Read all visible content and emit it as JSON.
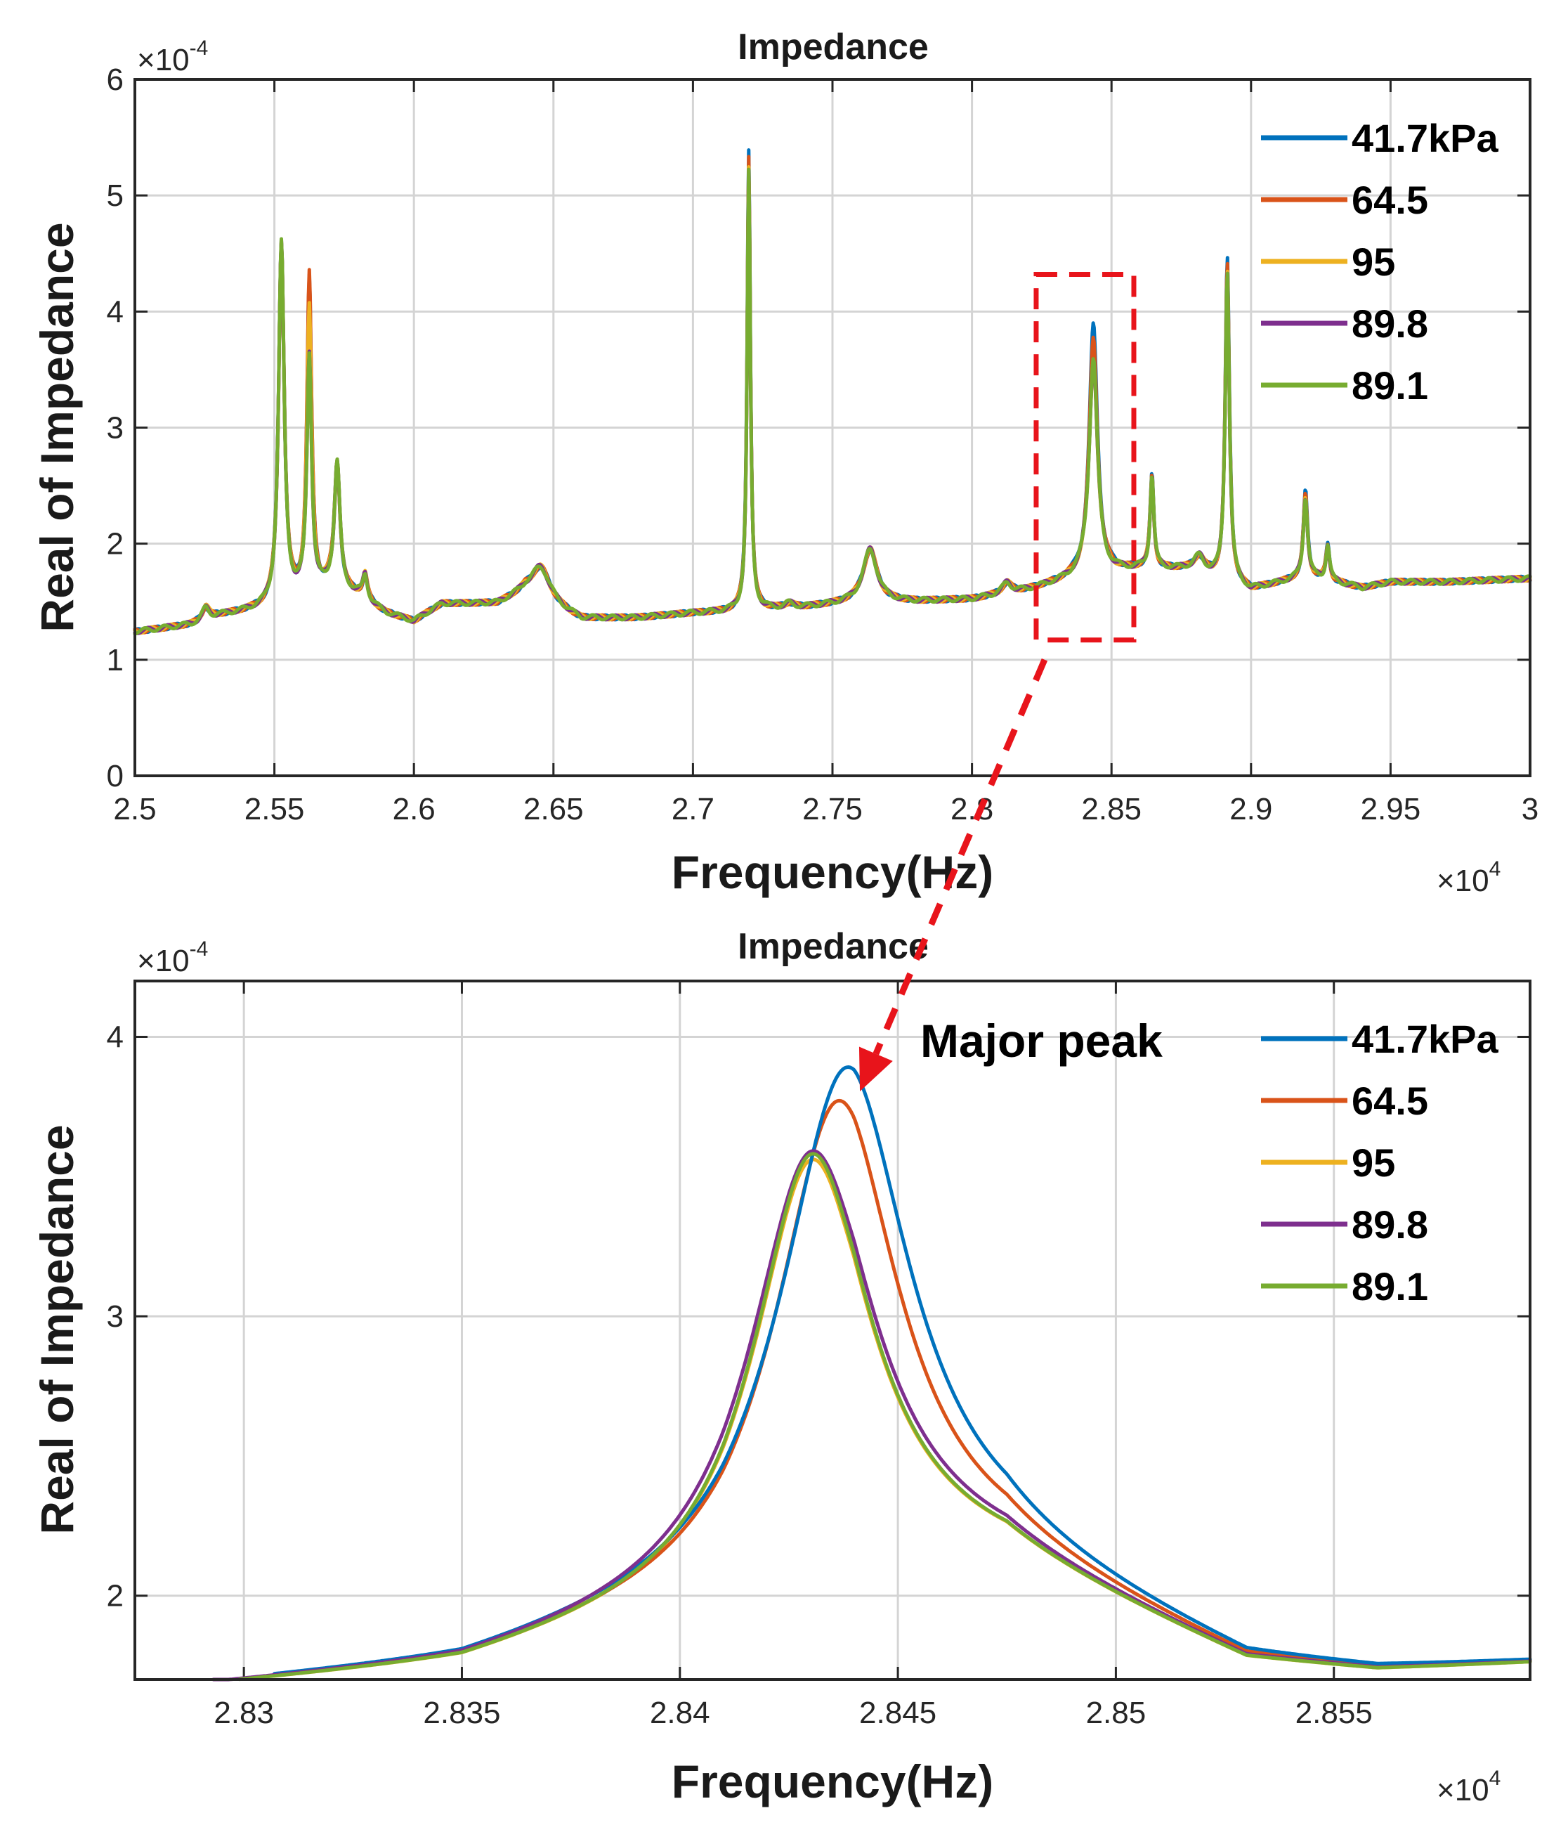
{
  "chart_data": [
    {
      "type": "line",
      "title": "Impedance",
      "xlabel": "Frequency(Hz)",
      "ylabel": "Real of Impedance",
      "x_multiplier": "×10",
      "x_exponent": "4",
      "y_multiplier": "×10",
      "y_exponent": "-4",
      "xlim": [
        2.5,
        3.0
      ],
      "ylim": [
        0,
        6
      ],
      "xticks": [
        2.5,
        2.55,
        2.6,
        2.65,
        2.7,
        2.75,
        2.8,
        2.85,
        2.9,
        2.95,
        3.0
      ],
      "xtick_labels": [
        "2.5",
        "2.55",
        "2.6",
        "2.65",
        "2.7",
        "2.75",
        "2.8",
        "2.85",
        "2.9",
        "2.95",
        "3"
      ],
      "yticks": [
        0,
        1,
        2,
        3,
        4,
        5,
        6
      ],
      "ytick_labels": [
        "0",
        "1",
        "2",
        "3",
        "4",
        "5",
        "6"
      ],
      "grid": true,
      "legend_position": "top-right",
      "highlight_box": {
        "x_range": [
          2.823,
          2.858
        ],
        "y_range": [
          1.17,
          4.32
        ],
        "color": "#e8141b",
        "style": "dashed"
      },
      "baseline": {
        "x": [
          2.5,
          2.52,
          2.53,
          2.55,
          2.57,
          2.58,
          2.59,
          2.6,
          2.61,
          2.63,
          2.64,
          2.66,
          2.68,
          2.7,
          2.72,
          2.74,
          2.76,
          2.78,
          2.8,
          2.82,
          2.84,
          2.86,
          2.88,
          2.9,
          2.92,
          2.94,
          2.95,
          2.97,
          3.0
        ],
        "y": [
          1.24,
          1.3,
          1.38,
          1.45,
          1.62,
          1.55,
          1.4,
          1.33,
          1.48,
          1.48,
          1.58,
          1.35,
          1.36,
          1.4,
          1.42,
          1.45,
          1.5,
          1.5,
          1.52,
          1.6,
          1.72,
          1.78,
          1.78,
          1.6,
          1.72,
          1.62,
          1.67,
          1.67,
          1.7
        ]
      },
      "peaks": [
        {
          "x": 2.5253,
          "height": 0.08,
          "width": 0.0015
        },
        {
          "x": 2.5525,
          "height": 3.0,
          "width": 0.0012
        },
        {
          "x": 2.5625,
          "height": 2.6,
          "width": 0.001
        },
        {
          "x": 2.5725,
          "height": 1.05,
          "width": 0.0012
        },
        {
          "x": 2.5825,
          "height": 0.12,
          "width": 0.001
        },
        {
          "x": 2.6455,
          "height": 0.25,
          "width": 0.004
        },
        {
          "x": 2.72,
          "height": 3.95,
          "width": 0.0007
        },
        {
          "x": 2.7345,
          "height": 0.05,
          "width": 0.002
        },
        {
          "x": 2.7635,
          "height": 0.45,
          "width": 0.003
        },
        {
          "x": 2.8125,
          "height": 0.07,
          "width": 0.002
        },
        {
          "x": 2.8435,
          "height": 2.05,
          "width": 0.0018
        },
        {
          "x": 2.8645,
          "height": 0.8,
          "width": 0.0008
        },
        {
          "x": 2.8815,
          "height": 0.1,
          "width": 0.002
        },
        {
          "x": 2.8915,
          "height": 2.75,
          "width": 0.0009
        },
        {
          "x": 2.9195,
          "height": 0.6,
          "width": 0.0009
        },
        {
          "x": 2.9275,
          "height": 0.28,
          "width": 0.0008
        }
      ],
      "series": [
        {
          "name": "41.7kPa",
          "color": "#0072bd",
          "peak_values": [
            1.45,
            4.58,
            4.25,
            2.68,
            1.72,
            1.8,
            5.4,
            1.48,
            1.95,
            1.66,
            3.88,
            2.58,
            1.88,
            4.45,
            2.45,
            1.98
          ]
        },
        {
          "name": "64.5",
          "color": "#d95319",
          "peak_values": [
            1.45,
            4.58,
            4.28,
            2.7,
            1.72,
            1.8,
            5.35,
            1.48,
            1.95,
            1.66,
            3.77,
            2.58,
            1.88,
            4.4,
            2.42,
            1.98
          ]
        },
        {
          "name": "95",
          "color": "#edb120",
          "peak_values": [
            1.46,
            4.58,
            4.0,
            2.68,
            1.72,
            1.8,
            5.25,
            1.48,
            1.95,
            1.66,
            3.6,
            2.58,
            1.88,
            4.35,
            2.4,
            1.98
          ]
        },
        {
          "name": "89.8",
          "color": "#7e2f8e",
          "peak_values": [
            1.44,
            4.58,
            3.6,
            2.68,
            1.72,
            1.8,
            5.2,
            1.48,
            1.95,
            1.66,
            3.6,
            2.58,
            1.88,
            4.35,
            2.4,
            1.98
          ]
        },
        {
          "name": "89.1",
          "color": "#77ac30",
          "peak_values": [
            1.44,
            4.58,
            3.6,
            2.68,
            1.72,
            1.8,
            5.2,
            1.48,
            1.95,
            1.66,
            3.6,
            2.58,
            1.88,
            4.35,
            2.4,
            1.98
          ]
        }
      ]
    },
    {
      "type": "line",
      "title": "Impedance",
      "xlabel": "Frequency(Hz)",
      "ylabel": "Real of Impedance",
      "x_multiplier": "×10",
      "x_exponent": "4",
      "y_multiplier": "×10",
      "y_exponent": "-4",
      "xlim": [
        2.8275,
        2.8595
      ],
      "ylim": [
        1.7,
        4.2
      ],
      "xticks": [
        2.83,
        2.835,
        2.84,
        2.845,
        2.85,
        2.855
      ],
      "xtick_labels": [
        "2.83",
        "2.835",
        "2.84",
        "2.845",
        "2.85",
        "2.855"
      ],
      "yticks": [
        2,
        3,
        4
      ],
      "ytick_labels": [
        "2",
        "3",
        "4"
      ],
      "grid": true,
      "legend_position": "top-right",
      "annotation": {
        "text": "Major peak",
        "arrow_to": {
          "x": 2.844,
          "y": 3.78
        }
      },
      "background": {
        "x": [
          2.8275,
          2.835,
          2.841,
          2.844,
          2.8475,
          2.853,
          2.856,
          2.8595
        ],
        "y": [
          1.65,
          1.74,
          1.96,
          2.15,
          2.1,
          1.75,
          1.72,
          1.75
        ]
      },
      "series": [
        {
          "name": "41.7kPa",
          "color": "#0072bd",
          "x_start": 2.8307,
          "peak_x": 2.8438,
          "peak_y": 3.89,
          "width": 0.0018
        },
        {
          "name": "64.5",
          "color": "#d95319",
          "x_start": 2.8312,
          "peak_x": 2.8436,
          "peak_y": 3.77,
          "width": 0.0017
        },
        {
          "name": "95",
          "color": "#edb120",
          "x_start": 2.8307,
          "peak_x": 2.843,
          "peak_y": 3.56,
          "width": 0.0016
        },
        {
          "name": "89.8",
          "color": "#7e2f8e",
          "x_start": 2.8293,
          "peak_x": 2.843,
          "peak_y": 3.59,
          "width": 0.0017
        },
        {
          "name": "89.1",
          "color": "#77ac30",
          "x_start": 2.8299,
          "peak_x": 2.843,
          "peak_y": 3.58,
          "width": 0.0016
        }
      ]
    }
  ]
}
